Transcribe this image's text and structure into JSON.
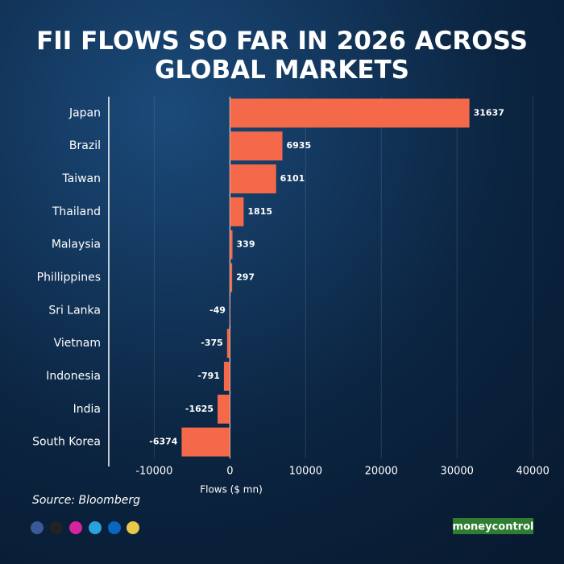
{
  "chart_data": {
    "type": "hbar",
    "title": "FII FLOWS SO FAR IN 2026 ACROSS GLOBAL MARKETS",
    "categories": [
      "Japan",
      "Brazil",
      "Taiwan",
      "Thailand",
      "Malaysia",
      "Phillippines",
      "Sri Lanka",
      "Vietnam",
      "Indonesia",
      "India",
      "South Korea"
    ],
    "values": [
      31637,
      6935,
      6101,
      1815,
      339,
      297,
      -49,
      -375,
      -791,
      -1625,
      -6374
    ],
    "color": "#f4694a",
    "xlim": [
      -16000,
      42000
    ],
    "xticks": [
      -10000,
      0,
      10000,
      20000,
      30000,
      40000
    ],
    "xlabel": "Flows ($ mn)",
    "grid": true,
    "source": "Source: Bloomberg",
    "brand": "moneycontrol"
  }
}
